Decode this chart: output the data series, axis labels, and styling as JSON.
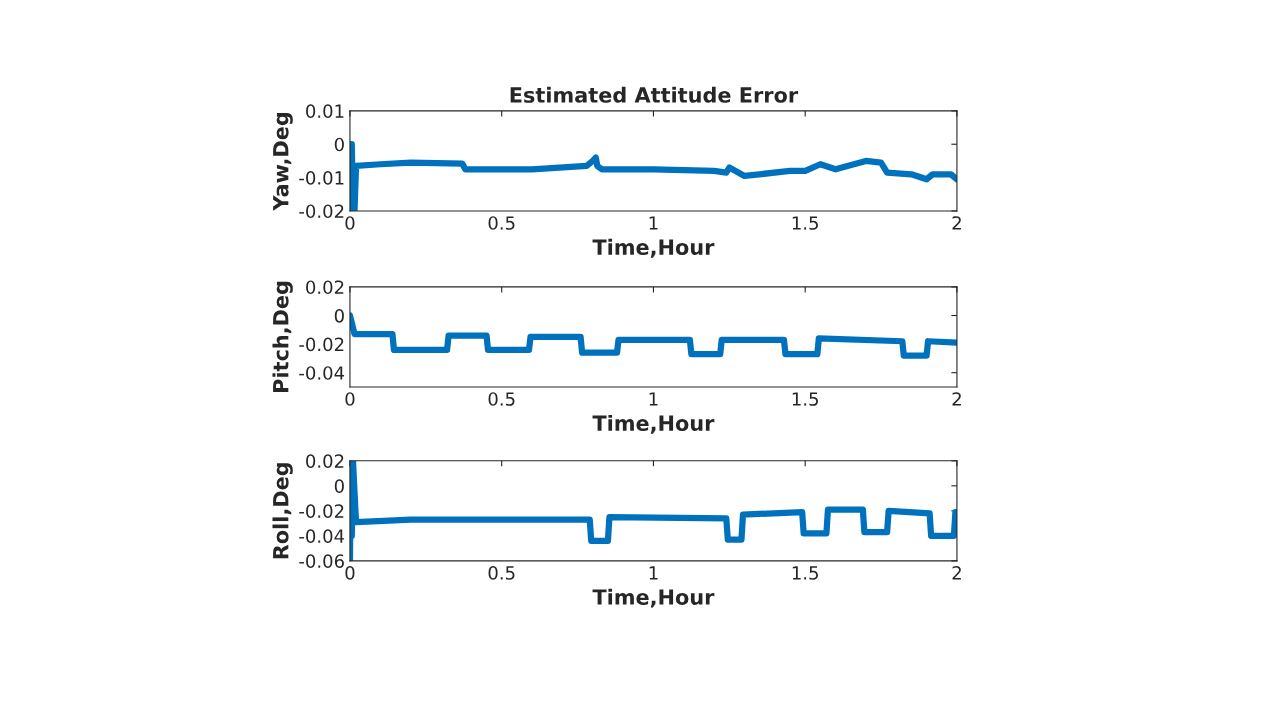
{
  "chart_data": [
    {
      "type": "line",
      "title": "Estimated Attitude Error",
      "xlabel": "Time,Hour",
      "ylabel": "Yaw,Deg",
      "xlim": [
        0,
        2
      ],
      "xticks": [
        0,
        0.5,
        1,
        1.5,
        2
      ],
      "ylim": [
        -0.02,
        0.01
      ],
      "yticks": [
        -0.02,
        -0.01,
        0,
        0.01
      ],
      "grid": false,
      "legend": false,
      "series": [
        {
          "color": "#0072bd",
          "x": [
            0,
            0.003,
            0.006,
            0.01,
            0.015,
            0.02,
            0.1,
            0.2,
            0.37,
            0.38,
            0.6,
            0.78,
            0.8,
            0.81,
            0.815,
            0.83,
            1.0,
            1.2,
            1.24,
            1.25,
            1.3,
            1.45,
            1.5,
            1.55,
            1.6,
            1.7,
            1.75,
            1.77,
            1.85,
            1.9,
            1.92,
            1.98,
            2.0
          ],
          "values": [
            0,
            -0.02,
            0,
            -0.02,
            -0.02,
            -0.0065,
            -0.006,
            -0.0055,
            -0.0058,
            -0.0075,
            -0.0075,
            -0.0065,
            -0.005,
            -0.004,
            -0.0065,
            -0.0075,
            -0.0075,
            -0.008,
            -0.0085,
            -0.007,
            -0.0095,
            -0.008,
            -0.008,
            -0.006,
            -0.0075,
            -0.005,
            -0.0055,
            -0.0085,
            -0.009,
            -0.0105,
            -0.009,
            -0.009,
            -0.0105
          ]
        }
      ]
    },
    {
      "type": "line",
      "xlabel": "Time,Hour",
      "ylabel": "Pitch,Deg",
      "xlim": [
        0,
        2
      ],
      "xticks": [
        0,
        0.5,
        1,
        1.5,
        2
      ],
      "ylim": [
        -0.05,
        0.02
      ],
      "yticks": [
        -0.04,
        -0.02,
        0,
        0.02
      ],
      "grid": false,
      "legend": false,
      "series": [
        {
          "color": "#0072bd",
          "x": [
            0,
            0.003,
            0.006,
            0.01,
            0.015,
            0.14,
            0.145,
            0.32,
            0.325,
            0.45,
            0.455,
            0.59,
            0.595,
            0.76,
            0.765,
            0.88,
            0.885,
            1.12,
            1.125,
            1.22,
            1.225,
            1.43,
            1.435,
            1.54,
            1.545,
            1.82,
            1.825,
            1.9,
            1.905,
            2.0
          ],
          "values": [
            0,
            null,
            -0.005,
            null,
            -0.013,
            -0.013,
            -0.024,
            -0.024,
            -0.014,
            -0.014,
            -0.024,
            -0.024,
            -0.015,
            -0.015,
            -0.026,
            -0.026,
            -0.017,
            -0.017,
            -0.027,
            -0.027,
            -0.017,
            -0.017,
            -0.027,
            -0.027,
            -0.016,
            -0.018,
            -0.028,
            -0.028,
            -0.018,
            -0.019
          ]
        }
      ]
    },
    {
      "type": "line",
      "xlabel": "Time,Hour",
      "ylabel": "Roll,Deg",
      "xlim": [
        0,
        2
      ],
      "xticks": [
        0,
        0.5,
        1,
        1.5,
        2
      ],
      "ylim": [
        -0.06,
        0.02
      ],
      "yticks": [
        -0.06,
        -0.04,
        -0.02,
        0,
        0.02
      ],
      "grid": false,
      "legend": false,
      "series": [
        {
          "color": "#0072bd",
          "x": [
            0,
            0.003,
            0.006,
            0.01,
            0.015,
            0.02,
            0.2,
            0.79,
            0.795,
            0.85,
            0.855,
            1.24,
            1.245,
            1.29,
            1.295,
            1.49,
            1.495,
            1.57,
            1.575,
            1.69,
            1.695,
            1.77,
            1.775,
            1.91,
            1.915,
            1.99,
            1.995,
            2.0
          ],
          "values": [
            -0.06,
            0.02,
            -0.04,
            0.02,
            -0.005,
            -0.029,
            -0.027,
            -0.027,
            -0.044,
            -0.044,
            -0.025,
            -0.026,
            -0.043,
            -0.043,
            -0.023,
            -0.021,
            -0.038,
            -0.038,
            -0.019,
            -0.019,
            -0.037,
            -0.037,
            -0.02,
            -0.022,
            -0.04,
            -0.04,
            -0.021,
            -0.021
          ]
        }
      ]
    }
  ]
}
